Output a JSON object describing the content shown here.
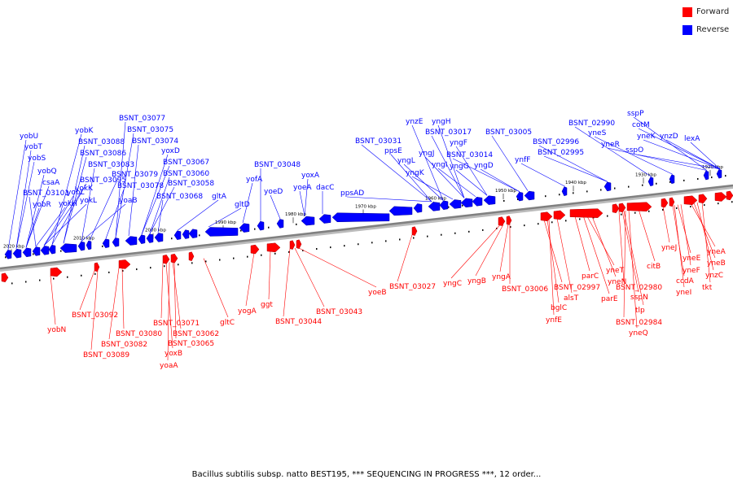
{
  "legend": {
    "items": [
      {
        "label": "Forward",
        "color": "#ff0000"
      },
      {
        "label": "Reverse",
        "color": "#0000ff"
      }
    ]
  },
  "caption": "Bacillus subtilis subsp. natto BEST195, *** SEQUENCING IN PROGRESS ***, 12 order...",
  "colors": {
    "forward": "#ff0000",
    "forward_dark": "#b00000",
    "reverse": "#0000ff",
    "reverse_dark": "#0000a0",
    "backbone": "#808080",
    "tick": "#000000"
  },
  "scale_labels": [
    "2020 kbp",
    "2010 kbp",
    "2000 kbp",
    "1990 kbp",
    "1980 kbp",
    "1970 kbp",
    "1960 kbp",
    "1950 kbp",
    "1940 kbp",
    "1930 kbp",
    "1920 kbp"
  ],
  "reverse_genes": [
    "yobU",
    "yobT",
    "yobS",
    "yobQ",
    "csaA",
    "BSNT_03101",
    "yobR",
    "yokH",
    "yobL",
    "yokK",
    "yokL",
    "yobK",
    "BSNT_03095",
    "BSNT_03088",
    "BSNT_03086",
    "BSNT_03083",
    "yoaB",
    "BSNT_03079",
    "BSNT_03078",
    "BSNT_03077",
    "BSNT_03075",
    "BSNT_03074",
    "yoxD",
    "BSNT_03067",
    "BSNT_03060",
    "BSNT_03058",
    "BSNT_03068",
    "gltA",
    "gltD",
    "yofA",
    "BSNT_03048",
    "yoeD",
    "yoxA",
    "yoeA",
    "dacC",
    "ppsAD",
    "BSNT_03031",
    "ppsE",
    "ynzE",
    "yngL",
    "yngK",
    "yngH",
    "yngJ",
    "BSNT_03017",
    "yngI",
    "yngF",
    "yngG",
    "BSNT_03014",
    "yngD",
    "BSNT_03005",
    "ynfF",
    "BSNT_02996",
    "BSNT_02995",
    "BSNT_02990",
    "yneS",
    "yneR",
    "sspP",
    "cotM",
    "yneK",
    "sspO",
    "ynzD",
    "lexA"
  ],
  "forward_genes": [
    "yobN",
    "BSNT_03092",
    "BSNT_03089",
    "BSNT_03082",
    "BSNT_03080",
    "BSNT_03071",
    "yoxB",
    "yoaA",
    "BSNT_03062",
    "BSNT_03065",
    "gltC",
    "yogA",
    "ggt",
    "BSNT_03044",
    "BSNT_03043",
    "yoeB",
    "BSNT_03027",
    "yngC",
    "yngB",
    "yngA",
    "BSNT_03006",
    "BSNT_02997",
    "bglC",
    "ynfE",
    "alsT",
    "parC",
    "parE",
    "yneT",
    "yneN",
    "BSNT_02980",
    "sspN",
    "tlp",
    "BSNT_02984",
    "yneQ",
    "citB",
    "yneJ",
    "ccdA",
    "yneI",
    "yneE",
    "yneF",
    "yneA",
    "yneB",
    "ynzC",
    "tkt"
  ]
}
